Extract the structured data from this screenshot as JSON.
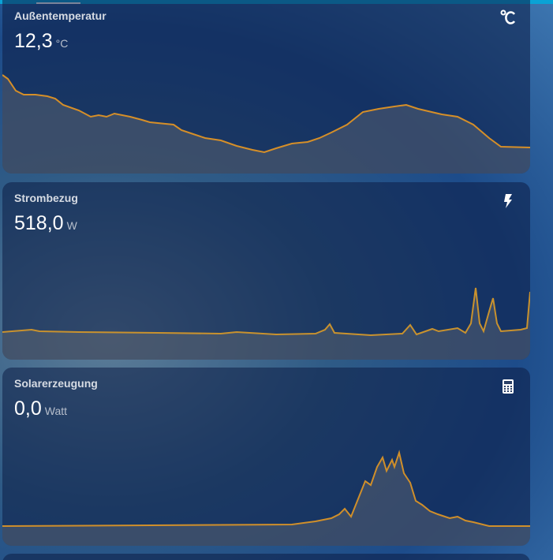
{
  "cards": [
    {
      "name": "Außentemperatur",
      "state": "12,3",
      "unit": "°C"
    },
    {
      "name": "Strombezug",
      "state": "518,0",
      "unit": "W"
    },
    {
      "name": "Solarerzeugung",
      "state": "0,0",
      "unit": "Watt"
    }
  ]
}
